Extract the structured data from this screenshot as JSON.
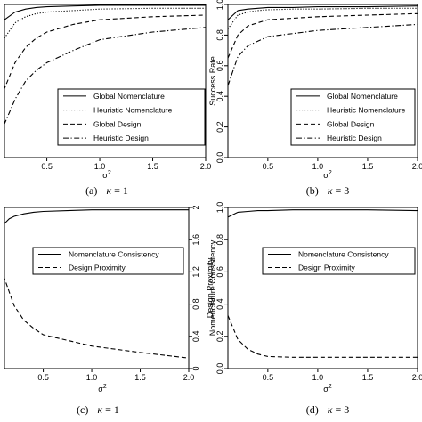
{
  "chart_data": [
    {
      "type": "line",
      "caption": {
        "label": "(a)",
        "kappa": "κ",
        "eq": " = 1"
      },
      "xlabel": "σ",
      "xlabel_sup": "2",
      "ylabel": "",
      "xlim": [
        0.1,
        2.0
      ],
      "ylim": [
        0.0,
        1.0
      ],
      "xticks": [
        "0.5",
        "1.0",
        "1.5",
        "2.0"
      ],
      "yticks": [],
      "legend_position": "bottom-right",
      "series": [
        {
          "name": "Global Nomenclature",
          "dash": "solid",
          "x": [
            0.05,
            0.1,
            0.2,
            0.3,
            0.4,
            0.5,
            0.75,
            1.0,
            1.5,
            2.0
          ],
          "y": [
            0.82,
            0.9,
            0.95,
            0.97,
            0.98,
            0.985,
            0.99,
            0.995,
            0.995,
            0.995
          ]
        },
        {
          "name": "Heuristic Nomenclature",
          "dash": "dotted",
          "x": [
            0.05,
            0.1,
            0.2,
            0.3,
            0.4,
            0.5,
            0.75,
            1.0,
            1.5,
            2.0
          ],
          "y": [
            0.7,
            0.78,
            0.88,
            0.92,
            0.94,
            0.95,
            0.96,
            0.97,
            0.975,
            0.975
          ]
        },
        {
          "name": "Global Design",
          "dash": "dashed",
          "x": [
            0.05,
            0.1,
            0.2,
            0.3,
            0.4,
            0.5,
            0.75,
            1.0,
            1.5,
            2.0
          ],
          "y": [
            0.35,
            0.45,
            0.62,
            0.72,
            0.78,
            0.82,
            0.87,
            0.9,
            0.92,
            0.93
          ]
        },
        {
          "name": "Heuristic Design",
          "dash": "dashdot",
          "x": [
            0.05,
            0.1,
            0.2,
            0.3,
            0.4,
            0.5,
            0.75,
            1.0,
            1.5,
            2.0
          ],
          "y": [
            0.15,
            0.22,
            0.38,
            0.5,
            0.57,
            0.62,
            0.7,
            0.77,
            0.82,
            0.85
          ]
        }
      ]
    },
    {
      "type": "line",
      "caption": {
        "label": "(b)",
        "kappa": "κ",
        "eq": " = 3"
      },
      "xlabel": "σ",
      "xlabel_sup": "2",
      "ylabel": "Success Rate",
      "xlim": [
        0.1,
        2.0
      ],
      "ylim": [
        0.0,
        1.0
      ],
      "xticks": [
        "0.5",
        "1.0",
        "1.5",
        "2.0"
      ],
      "yticks": [
        "0.0",
        "0.2",
        "0.4",
        "0.6",
        "0.8",
        "1.0"
      ],
      "legend_position": "bottom-right",
      "series": [
        {
          "name": "Global Nomenclature",
          "dash": "solid",
          "x": [
            0.1,
            0.2,
            0.3,
            0.4,
            0.5,
            0.75,
            1.0,
            1.5,
            2.0
          ],
          "y": [
            0.9,
            0.96,
            0.97,
            0.975,
            0.98,
            0.98,
            0.985,
            0.985,
            0.99
          ]
        },
        {
          "name": "Heuristic Nomenclature",
          "dash": "dotted",
          "x": [
            0.1,
            0.2,
            0.3,
            0.4,
            0.5,
            0.75,
            1.0,
            1.5,
            2.0
          ],
          "y": [
            0.84,
            0.93,
            0.95,
            0.96,
            0.965,
            0.97,
            0.97,
            0.975,
            0.975
          ]
        },
        {
          "name": "Global Design",
          "dash": "dashed",
          "x": [
            0.1,
            0.2,
            0.3,
            0.4,
            0.5,
            0.75,
            1.0,
            1.5,
            2.0
          ],
          "y": [
            0.65,
            0.8,
            0.86,
            0.88,
            0.9,
            0.91,
            0.92,
            0.93,
            0.94
          ]
        },
        {
          "name": "Heuristic Design",
          "dash": "dashdot",
          "x": [
            0.1,
            0.2,
            0.3,
            0.4,
            0.5,
            0.75,
            1.0,
            1.5,
            2.0
          ],
          "y": [
            0.47,
            0.66,
            0.73,
            0.76,
            0.79,
            0.81,
            0.83,
            0.85,
            0.87
          ]
        }
      ]
    },
    {
      "type": "line",
      "caption": {
        "label": "(c)",
        "kappa": "κ",
        "eq": " = 1"
      },
      "xlabel": "σ",
      "xlabel_sup": "2",
      "ylabel": "",
      "ylabel_right": "Design Proximity",
      "xlim": [
        0.1,
        2.0
      ],
      "ylim": [
        0.0,
        2.0
      ],
      "xticks": [
        "0.5",
        "1.0",
        "1.5",
        "2.0"
      ],
      "yticks": [],
      "yticks_right": [
        "0",
        "0.4",
        "0.8",
        "1.2",
        "1.6",
        "2"
      ],
      "legend_position": "top-right",
      "series": [
        {
          "name": "Nomenclature Consistency",
          "dash": "solid",
          "x": [
            0.05,
            0.1,
            0.15,
            0.2,
            0.3,
            0.4,
            0.5,
            0.75,
            1.0,
            1.5,
            2.0
          ],
          "y": [
            1.73,
            1.8,
            1.86,
            1.89,
            1.92,
            1.94,
            1.95,
            1.96,
            1.97,
            1.97,
            1.97
          ]
        },
        {
          "name": "Design Proximity",
          "dash": "dashed",
          "x": [
            0.05,
            0.1,
            0.15,
            0.2,
            0.3,
            0.4,
            0.5,
            0.75,
            1.0,
            1.5,
            2.0
          ],
          "y": [
            1.32,
            1.12,
            0.95,
            0.78,
            0.6,
            0.5,
            0.42,
            0.35,
            0.28,
            0.2,
            0.13
          ]
        }
      ]
    },
    {
      "type": "line",
      "caption": {
        "label": "(d)",
        "kappa": "κ",
        "eq": " = 3"
      },
      "xlabel": "σ",
      "xlabel_sup": "2",
      "ylabel": "Nomenclature Consistency",
      "xlim": [
        0.1,
        2.0
      ],
      "ylim": [
        0.0,
        1.0
      ],
      "xticks": [
        "0.5",
        "1.0",
        "1.5",
        "2.0"
      ],
      "yticks": [
        "0.0",
        "0.2",
        "0.4",
        "0.6",
        "0.8",
        "1.0"
      ],
      "legend_position": "top-right",
      "series": [
        {
          "name": "Nomenclature Consistency",
          "dash": "solid",
          "x": [
            0.1,
            0.2,
            0.3,
            0.4,
            0.5,
            0.75,
            1.0,
            1.5,
            2.0
          ],
          "y": [
            0.94,
            0.97,
            0.975,
            0.98,
            0.98,
            0.985,
            0.985,
            0.985,
            0.98
          ]
        },
        {
          "name": "Design Proximity",
          "dash": "dashed",
          "x": [
            0.1,
            0.2,
            0.3,
            0.4,
            0.5,
            0.75,
            1.0,
            1.5,
            2.0
          ],
          "y": [
            0.33,
            0.18,
            0.12,
            0.09,
            0.075,
            0.07,
            0.07,
            0.07,
            0.07
          ]
        }
      ]
    }
  ]
}
